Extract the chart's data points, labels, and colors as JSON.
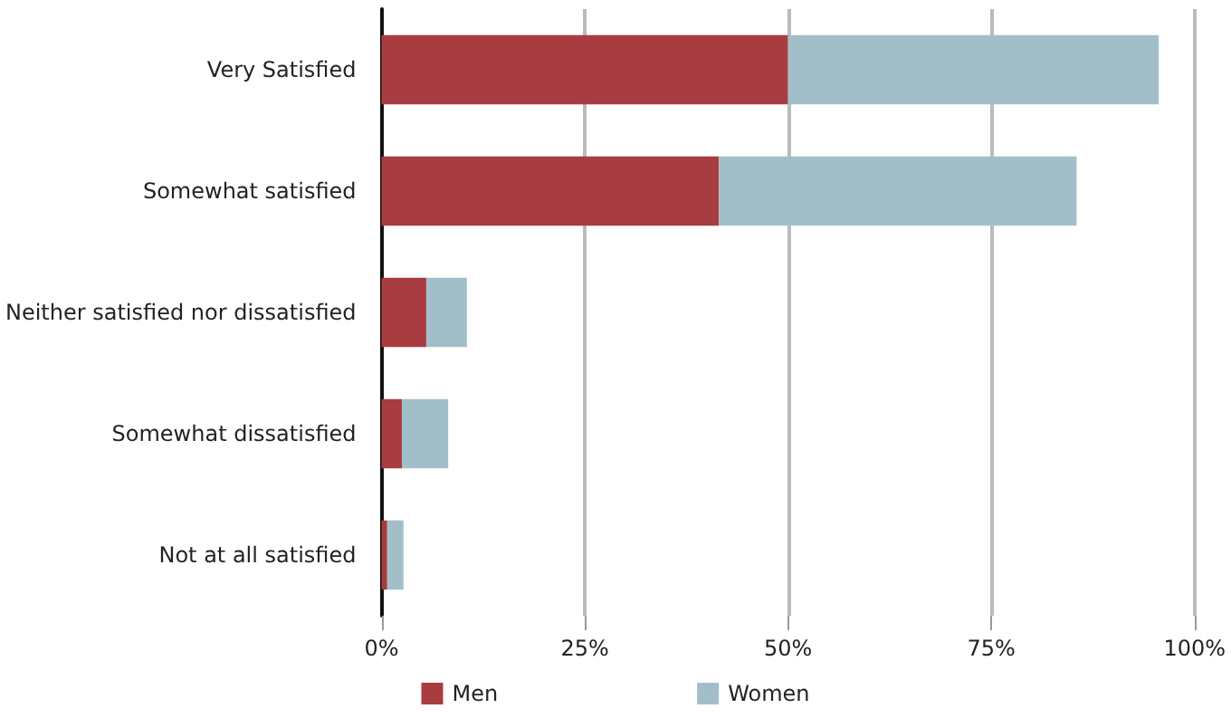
{
  "chart_data": {
    "type": "bar",
    "orientation": "horizontal",
    "stacked": true,
    "categories": [
      "Very Satisfied",
      "Somewhat satisfied",
      "Neither satisfied nor dissatisfied",
      "Somewhat dissatisfied",
      "Not at all satisfied"
    ],
    "series": [
      {
        "name": "Men",
        "color": "#a83c40",
        "values": [
          50,
          41.5,
          5.5,
          2.5,
          0.7
        ]
      },
      {
        "name": "Women",
        "color": "#a2bfc9",
        "values": [
          45.6,
          44,
          5,
          5.7,
          2
        ]
      }
    ],
    "xlim": [
      0,
      100
    ],
    "xticks": [
      {
        "value": 0,
        "label": "0%"
      },
      {
        "value": 25,
        "label": "25%"
      },
      {
        "value": 50,
        "label": "50%"
      },
      {
        "value": 75,
        "label": "75%"
      },
      {
        "value": 100,
        "label": "100%"
      }
    ],
    "grid": "x",
    "legend": "bottom"
  }
}
